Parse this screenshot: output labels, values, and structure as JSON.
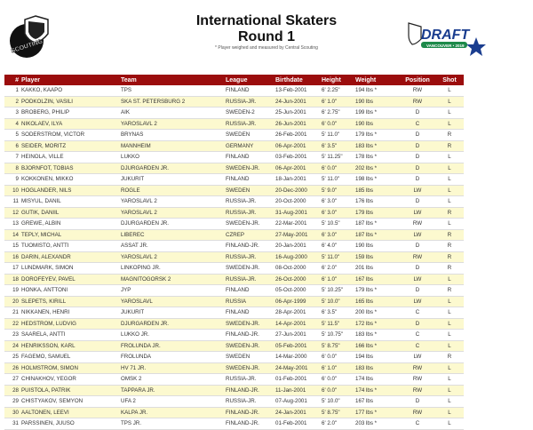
{
  "header": {
    "title": "International Skaters",
    "subtitle": "Round 1",
    "note": "* Player weighed and measured by Central Scouting",
    "logo_left": "NHL Central Scouting",
    "logo_right": "NHL Draft Vancouver 2019"
  },
  "colors": {
    "header_bg": "#9b0d0d",
    "row_alt": "#fcf9cf"
  },
  "columns": [
    "#",
    "Player",
    "Team",
    "League",
    "Birthdate",
    "Height",
    "Weight",
    "Position",
    "Shot"
  ],
  "rows": [
    [
      "1",
      "KAKKO, KAAPO",
      "TPS",
      "FINLAND",
      "13-Feb-2001",
      "6' 2.25\"",
      "194 lbs *",
      "RW",
      "L"
    ],
    [
      "2",
      "PODKOLZIN, VASILI",
      "SKA ST. PETERSBURG 2",
      "RUSSIA-JR.",
      "24-Jun-2001",
      "6' 1.0\"",
      "190 lbs",
      "RW",
      "L"
    ],
    [
      "3",
      "BROBERG, PHILIP",
      "AIK",
      "SWEDEN-2",
      "25-Jun-2001",
      "6' 2.75\"",
      "199 lbs *",
      "D",
      "L"
    ],
    [
      "4",
      "NIKOLAEV, ILYA",
      "YAROSLAVL 2",
      "RUSSIA-JR.",
      "26-Jun-2001",
      "6' 0.0\"",
      "190 lbs",
      "C",
      "L"
    ],
    [
      "5",
      "SODERSTROM, VICTOR",
      "BRYNAS",
      "SWEDEN",
      "26-Feb-2001",
      "5' 11.0\"",
      "179 lbs *",
      "D",
      "R"
    ],
    [
      "6",
      "SEIDER, MORITZ",
      "MANNHEIM",
      "GERMANY",
      "06-Apr-2001",
      "6' 3.5\"",
      "183 lbs *",
      "D",
      "R"
    ],
    [
      "7",
      "HEINOLA, VILLE",
      "LUKKO",
      "FINLAND",
      "03-Feb-2001",
      "5' 11.25\"",
      "178 lbs *",
      "D",
      "L"
    ],
    [
      "8",
      "BJORNFOT, TOBIAS",
      "DJURGARDEN JR.",
      "SWEDEN-JR.",
      "06-Apr-2001",
      "6' 0.0\"",
      "202 lbs *",
      "D",
      "L"
    ],
    [
      "9",
      "KOKKONEN, MIKKO",
      "JUKURIT",
      "FINLAND",
      "18-Jan-2001",
      "5' 11.0\"",
      "198 lbs *",
      "D",
      "L"
    ],
    [
      "10",
      "HOGLANDER, NILS",
      "ROGLE",
      "SWEDEN",
      "20-Dec-2000",
      "5' 9.0\"",
      "185 lbs",
      "LW",
      "L"
    ],
    [
      "11",
      "MISYUL, DANIL",
      "YAROSLAVL 2",
      "RUSSIA-JR.",
      "20-Oct-2000",
      "6' 3.0\"",
      "176 lbs",
      "D",
      "L"
    ],
    [
      "12",
      "GUTIK, DANIIL",
      "YAROSLAVL 2",
      "RUSSIA-JR.",
      "31-Aug-2001",
      "6' 3.0\"",
      "179 lbs",
      "LW",
      "R"
    ],
    [
      "13",
      "GREWE, ALBIN",
      "DJURGARDEN JR.",
      "SWEDEN-JR.",
      "22-Mar-2001",
      "5' 10.5\"",
      "187 lbs *",
      "RW",
      "L"
    ],
    [
      "14",
      "TEPLY, MICHAL",
      "LIBEREC",
      "CZREP",
      "27-May-2001",
      "6' 3.0\"",
      "187 lbs *",
      "LW",
      "R"
    ],
    [
      "15",
      "TUOMISTO, ANTTI",
      "ASSAT JR.",
      "FINLAND-JR.",
      "20-Jan-2001",
      "6' 4.0\"",
      "190 lbs",
      "D",
      "R"
    ],
    [
      "16",
      "DARIN, ALEXANDR",
      "YAROSLAVL 2",
      "RUSSIA-JR.",
      "16-Aug-2000",
      "5' 11.0\"",
      "159 lbs",
      "RW",
      "R"
    ],
    [
      "17",
      "LUNDMARK, SIMON",
      "LINKOPING JR.",
      "SWEDEN-JR.",
      "08-Oct-2000",
      "6' 2.0\"",
      "201 lbs",
      "D",
      "R"
    ],
    [
      "18",
      "DOROFEYEV, PAVEL",
      "MAGNITOGORSK 2",
      "RUSSIA-JR.",
      "26-Oct-2000",
      "6' 1.0\"",
      "167 lbs",
      "LW",
      "L"
    ],
    [
      "19",
      "HONKA, ANTTONI",
      "JYP",
      "FINLAND",
      "05-Oct-2000",
      "5' 10.25\"",
      "179 lbs *",
      "D",
      "R"
    ],
    [
      "20",
      "SLEPETS, KIRILL",
      "YAROSLAVL",
      "RUSSIA",
      "06-Apr-1999",
      "5' 10.0\"",
      "165 lbs",
      "LW",
      "L"
    ],
    [
      "21",
      "NIKKANEN, HENRI",
      "JUKURIT",
      "FINLAND",
      "28-Apr-2001",
      "6' 3.5\"",
      "200 lbs *",
      "C",
      "L"
    ],
    [
      "22",
      "HEDSTROM, LUDVIG",
      "DJURGARDEN JR.",
      "SWEDEN-JR.",
      "14-Apr-2001",
      "5' 11.5\"",
      "172 lbs *",
      "D",
      "L"
    ],
    [
      "23",
      "SAARELA, ANTTI",
      "LUKKO JR.",
      "FINLAND-JR.",
      "27-Jun-2001",
      "5' 10.75\"",
      "183 lbs *",
      "C",
      "L"
    ],
    [
      "24",
      "HENRIKSSON, KARL",
      "FROLUNDA JR.",
      "SWEDEN-JR.",
      "05-Feb-2001",
      "5' 8.75\"",
      "166 lbs *",
      "C",
      "L"
    ],
    [
      "25",
      "FAGEMO, SAMUEL",
      "FROLUNDA",
      "SWEDEN",
      "14-Mar-2000",
      "6' 0.0\"",
      "194 lbs",
      "LW",
      "R"
    ],
    [
      "26",
      "HOLMSTROM, SIMON",
      "HV 71 JR.",
      "SWEDEN-JR.",
      "24-May-2001",
      "6' 1.0\"",
      "183 lbs",
      "RW",
      "L"
    ],
    [
      "27",
      "CHINAKHOV, YEGOR",
      "OMSK 2",
      "RUSSIA-JR.",
      "01-Feb-2001",
      "6' 0.0\"",
      "174 lbs",
      "RW",
      "L"
    ],
    [
      "28",
      "PUISTOLA, PATRIK",
      "TAPPARA JR.",
      "FINLAND-JR.",
      "11-Jan-2001",
      "6' 0.0\"",
      "174 lbs *",
      "RW",
      "L"
    ],
    [
      "29",
      "CHISTYAKOV, SEMYON",
      "UFA 2",
      "RUSSIA-JR.",
      "07-Aug-2001",
      "5' 10.0\"",
      "167 lbs",
      "D",
      "L"
    ],
    [
      "30",
      "AALTONEN, LEEVI",
      "KALPA JR.",
      "FINLAND-JR.",
      "24-Jan-2001",
      "5' 8.75\"",
      "177 lbs *",
      "RW",
      "L"
    ],
    [
      "31",
      "PARSSINEN, JUUSO",
      "TPS JR.",
      "FINLAND-JR.",
      "01-Feb-2001",
      "6' 2.0\"",
      "203 lbs *",
      "C",
      "L"
    ]
  ]
}
